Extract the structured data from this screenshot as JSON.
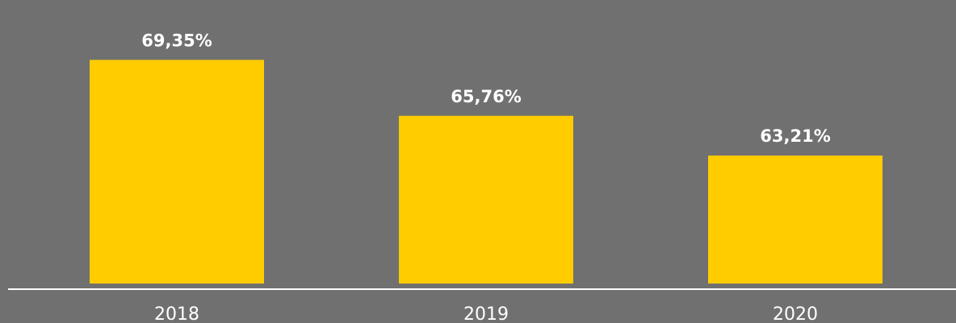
{
  "chart_data": {
    "type": "bar",
    "categories": [
      "2018",
      "2019",
      "2020"
    ],
    "values": [
      69.35,
      65.76,
      63.21
    ],
    "data_labels": [
      "69,35%",
      "65,76%",
      "63,21%"
    ],
    "title": "",
    "xlabel": "",
    "ylabel": "",
    "ylim": [
      55,
      70.4
    ],
    "grid": false,
    "legend": "none",
    "colors": {
      "background": "#707070",
      "bar": "#FFCC00",
      "axis": "#FFFFFF",
      "text": "#FFFFFF"
    }
  }
}
